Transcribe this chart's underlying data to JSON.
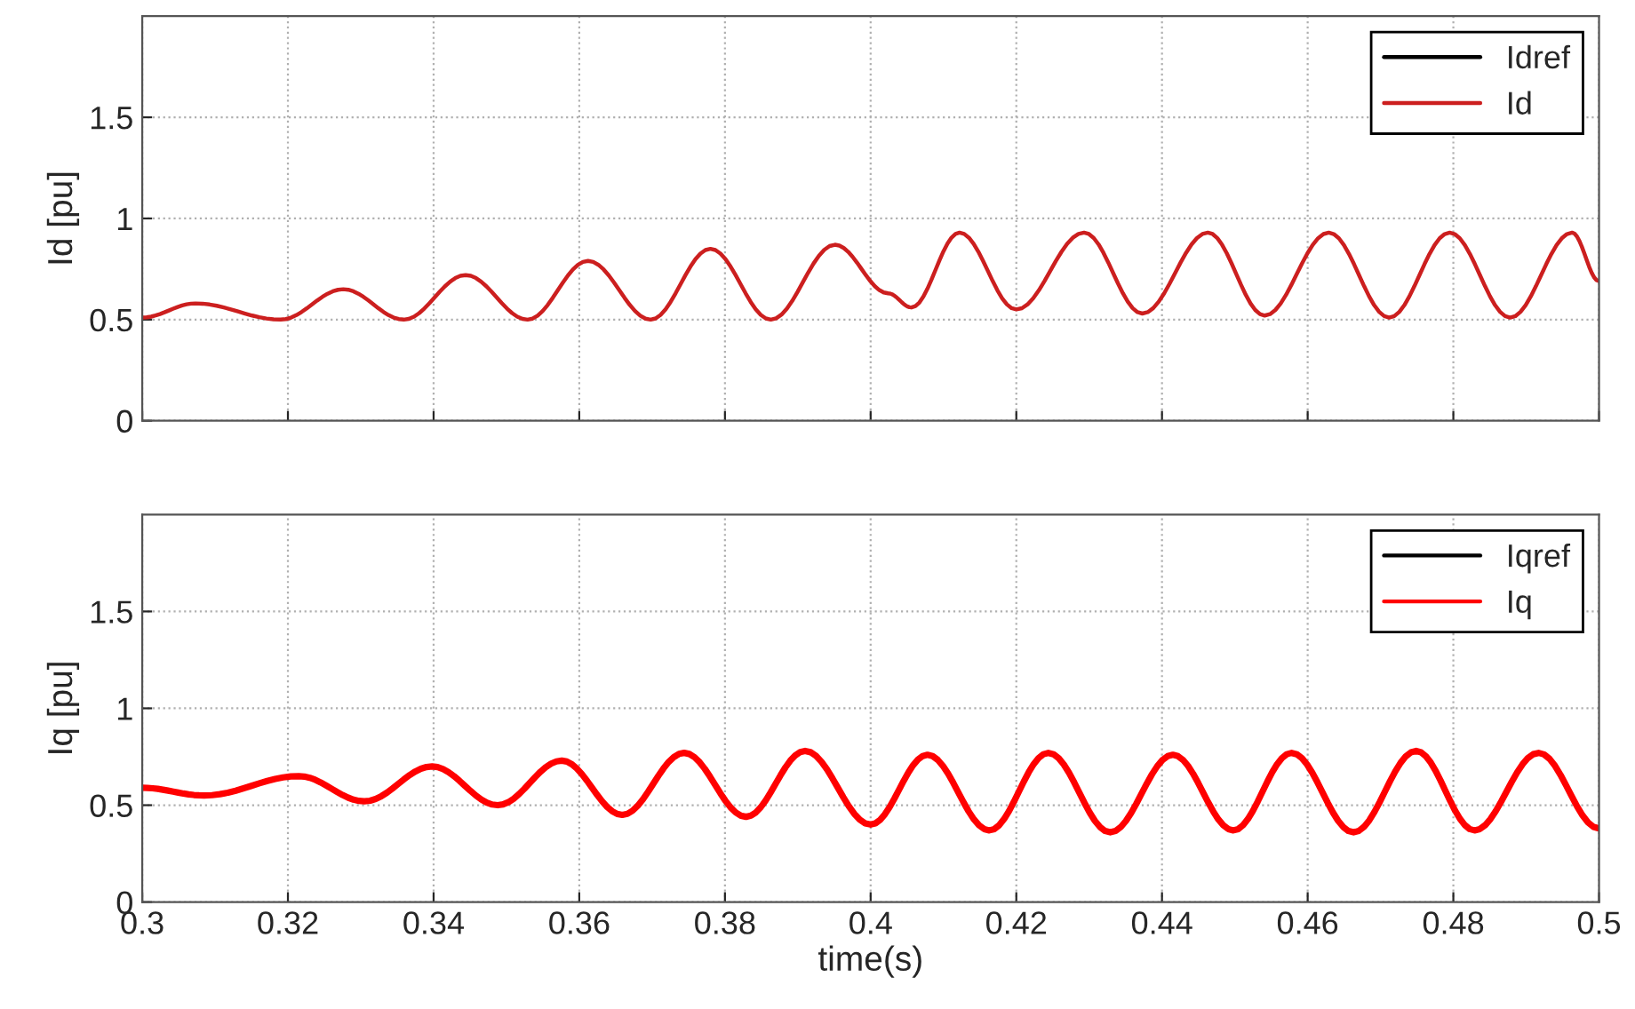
{
  "chart_data": [
    {
      "type": "line",
      "ylabel": "Id [pu]",
      "xlim": [
        0.3,
        0.5
      ],
      "xticks": [
        0.3,
        0.32,
        0.34,
        0.36,
        0.38,
        0.4,
        0.42,
        0.44,
        0.46,
        0.48,
        0.5
      ],
      "ylim": [
        0,
        2
      ],
      "yticks": [
        0,
        0.5,
        1,
        1.5
      ],
      "tick_labels": "y",
      "grid": true,
      "legend": "top right",
      "line_style": "solid",
      "series": [
        {
          "name": "Idref",
          "color": "#000000"
        },
        {
          "name": "Id",
          "color": "#cc1f1f",
          "x": [
            0.3,
            0.3073,
            0.319,
            0.3276,
            0.3359,
            0.3444,
            0.3529,
            0.3612,
            0.3698,
            0.378,
            0.3863,
            0.3951,
            0.4024,
            0.4056,
            0.4122,
            0.42,
            0.4293,
            0.4373,
            0.4463,
            0.4541,
            0.4629,
            0.4712,
            0.4795,
            0.4878,
            0.4963,
            0.5
          ],
          "values": [
            0.51,
            0.58,
            0.5,
            0.65,
            0.5,
            0.72,
            0.5,
            0.79,
            0.5,
            0.85,
            0.5,
            0.87,
            0.63,
            0.56,
            0.93,
            0.55,
            0.93,
            0.53,
            0.93,
            0.52,
            0.93,
            0.51,
            0.93,
            0.51,
            0.93,
            0.69
          ]
        }
      ]
    },
    {
      "type": "line",
      "xlabel": "time(s)",
      "ylabel": "Iq [pu]",
      "xlim": [
        0.3,
        0.5
      ],
      "xticks": [
        0.3,
        0.32,
        0.34,
        0.36,
        0.38,
        0.4,
        0.42,
        0.44,
        0.46,
        0.48,
        0.5
      ],
      "ylim": [
        0,
        2
      ],
      "yticks": [
        0,
        0.5,
        1,
        1.5
      ],
      "grid": true,
      "legend": "top right",
      "line_style": "solid",
      "series": [
        {
          "name": "Iqref",
          "color": "#000000"
        },
        {
          "name": "Iq",
          "color": "#ff0000",
          "x": [
            0.3,
            0.3085,
            0.3215,
            0.3305,
            0.3398,
            0.3488,
            0.3576,
            0.3659,
            0.3744,
            0.3829,
            0.391,
            0.4,
            0.4078,
            0.4163,
            0.4244,
            0.4329,
            0.4415,
            0.4498,
            0.4578,
            0.4663,
            0.4749,
            0.4829,
            0.4917,
            0.5
          ],
          "values": [
            0.59,
            0.55,
            0.65,
            0.52,
            0.7,
            0.5,
            0.73,
            0.45,
            0.77,
            0.44,
            0.78,
            0.4,
            0.76,
            0.37,
            0.77,
            0.36,
            0.76,
            0.37,
            0.77,
            0.36,
            0.78,
            0.37,
            0.77,
            0.38
          ]
        }
      ]
    }
  ]
}
